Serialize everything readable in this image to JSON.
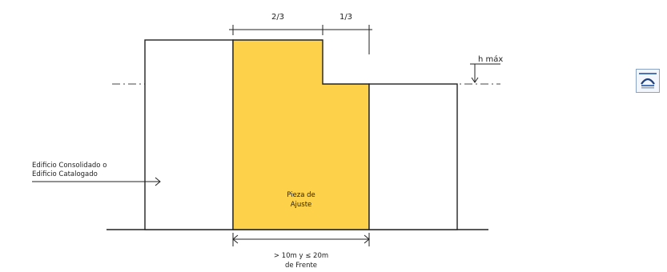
{
  "diagram": {
    "dimension_left": "2/3",
    "dimension_right": "1/3",
    "height_label": "h máx",
    "side_label_line1": "Edificio Consolidado o",
    "side_label_line2": "Edificio Catalogado",
    "center_label_line1": "Pieza de",
    "center_label_line2": "Ajuste",
    "front_label_line1": "> 10m y ≤ 20m",
    "front_label_line2": "de Frente"
  },
  "colors": {
    "fill": "#fdd24a",
    "stroke": "#222222"
  },
  "widget": {
    "icon": "arch-icon"
  }
}
